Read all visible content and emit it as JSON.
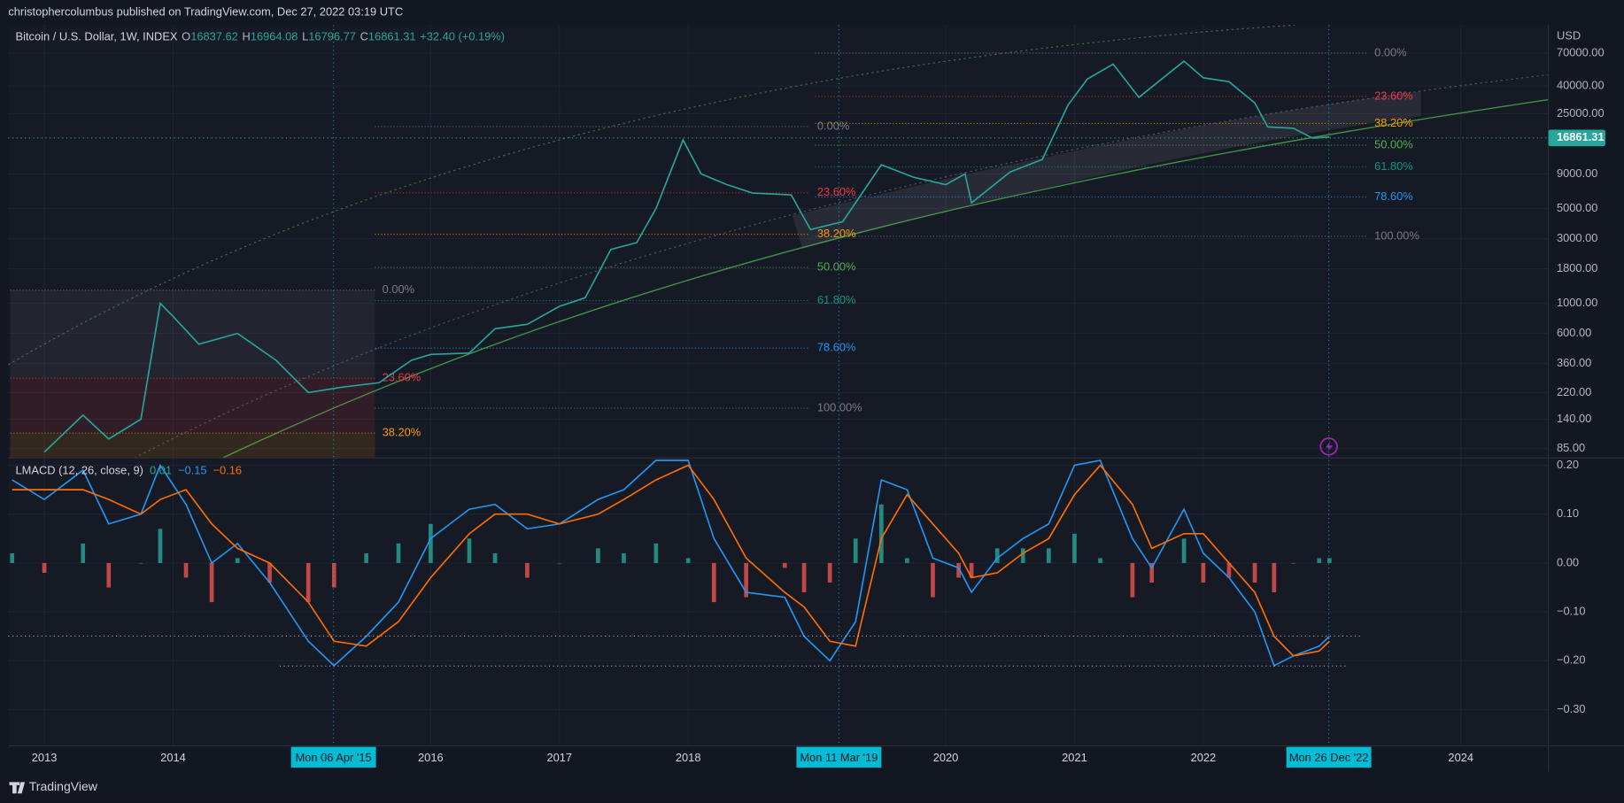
{
  "header": {
    "publisher": "christophercolumbus published on TradingView.com, Dec 27, 2022 03:19 UTC",
    "currency": "USD",
    "last_price": "16861.31",
    "brand": "TradingView"
  },
  "legend": {
    "symbol": "Bitcoin / U.S. Dollar, 1W, INDEX",
    "o": "O",
    "open": "16837.62",
    "h": "H",
    "high": "16964.08",
    "l": "L",
    "low": "16796.77",
    "c": "C",
    "close": "16861.31",
    "change": "+32.40 (+0.19%)"
  },
  "crosshair_dates": [
    "Mon 06 Apr '15",
    "Mon 11 Mar '19",
    "Mon 26 Dec '22"
  ],
  "fibonacci": [
    {
      "levels": [
        "0.00%",
        "23.60%",
        "38.20%"
      ]
    },
    {
      "levels": [
        "0.00%",
        "23.60%",
        "38.20%",
        "50.00%",
        "61.80%",
        "78.60%",
        "100.00%"
      ]
    },
    {
      "levels": [
        "0.00%",
        "23.60%",
        "38.20%",
        "50.00%",
        "61.80%",
        "78.60%",
        "100.00%"
      ]
    }
  ],
  "chart_data": [
    {
      "type": "line",
      "log_scale": true,
      "grid": true,
      "x": [
        2013.0,
        2013.3,
        2013.5,
        2013.75,
        2013.9,
        2014.0,
        2014.2,
        2014.5,
        2014.8,
        2015.05,
        2015.3,
        2015.6,
        2015.85,
        2016.0,
        2016.3,
        2016.5,
        2016.75,
        2017.0,
        2017.2,
        2017.4,
        2017.6,
        2017.75,
        2017.96,
        2018.1,
        2018.3,
        2018.5,
        2018.8,
        2018.95,
        2019.2,
        2019.5,
        2019.75,
        2020.0,
        2020.15,
        2020.2,
        2020.5,
        2020.75,
        2020.95,
        2021.1,
        2021.3,
        2021.5,
        2021.85,
        2022.0,
        2022.2,
        2022.4,
        2022.5,
        2022.7,
        2022.85,
        2022.98
      ],
      "series": [
        {
          "name": "Bitcoin / U.S. Dollar, 1W, INDEX",
          "color": "#26a69a",
          "values": [
            80,
            150,
            100,
            140,
            1000,
            800,
            500,
            600,
            380,
            220,
            240,
            260,
            380,
            420,
            430,
            650,
            700,
            950,
            1100,
            2500,
            2800,
            5000,
            16000,
            9000,
            7500,
            6500,
            6300,
            3500,
            4000,
            10500,
            8500,
            7500,
            9000,
            5500,
            9300,
            11500,
            29000,
            45000,
            58000,
            33000,
            61000,
            46000,
            43000,
            30000,
            20000,
            19500,
            16500,
            16861.31
          ]
        }
      ],
      "xlim": [
        2012.72,
        2024.68
      ],
      "ylim": [
        72.5,
        112500
      ],
      "yticks": [
        {
          "value": 70000,
          "label": "70000.00"
        },
        {
          "value": 40000,
          "label": "40000.00"
        },
        {
          "value": 25000,
          "label": "25000.00"
        },
        {
          "value": 9000,
          "label": "9000.00"
        },
        {
          "value": 5000,
          "label": "5000.00"
        },
        {
          "value": 3000,
          "label": "3000.00"
        },
        {
          "value": 1800,
          "label": "1800.00"
        },
        {
          "value": 1000,
          "label": "1000.00"
        },
        {
          "value": 600,
          "label": "600.00"
        },
        {
          "value": 360,
          "label": "360.00"
        },
        {
          "value": 220,
          "label": "220.00"
        },
        {
          "value": 140,
          "label": "140.00"
        },
        {
          "value": 85,
          "label": "85.00"
        }
      ]
    },
    {
      "type": "line",
      "grid": true,
      "title": "LMACD (12, 26, close, 9)",
      "legend_values": [
        {
          "value": 0.01,
          "label": "0.01"
        },
        {
          "value": -0.15,
          "label": "−0.15"
        },
        {
          "value": -0.16,
          "label": "−0.16"
        }
      ],
      "x": [
        2012.75,
        2013.0,
        2013.3,
        2013.5,
        2013.75,
        2013.9,
        2014.1,
        2014.3,
        2014.5,
        2014.75,
        2015.05,
        2015.25,
        2015.5,
        2015.75,
        2016.0,
        2016.3,
        2016.5,
        2016.75,
        2017.0,
        2017.3,
        2017.5,
        2017.75,
        2018.0,
        2018.2,
        2018.45,
        2018.75,
        2018.9,
        2019.1,
        2019.3,
        2019.5,
        2019.7,
        2019.9,
        2020.1,
        2020.2,
        2020.4,
        2020.6,
        2020.8,
        2021.0,
        2021.2,
        2021.45,
        2021.6,
        2021.85,
        2022.0,
        2022.2,
        2022.4,
        2022.55,
        2022.7,
        2022.9,
        2022.98
      ],
      "histogram": {
        "color": "#26a69a",
        "negative_color": "#ef5350",
        "values": [
          0.02,
          -0.02,
          0.04,
          -0.05,
          0,
          0.07,
          -0.03,
          -0.08,
          0.01,
          -0.04,
          -0.08,
          -0.05,
          0.02,
          0.04,
          0.08,
          0.05,
          0.02,
          -0.03,
          0,
          0.03,
          0.02,
          0.04,
          0.01,
          -0.08,
          -0.07,
          -0.01,
          -0.06,
          -0.04,
          0.05,
          0.12,
          0.01,
          -0.07,
          -0.03,
          -0.03,
          0.03,
          0.03,
          0.03,
          0.06,
          0.01,
          -0.07,
          -0.04,
          0.05,
          -0.04,
          -0.03,
          -0.04,
          -0.06,
          0,
          0.01,
          0.01
        ]
      },
      "series": [
        {
          "color": "#2196f3",
          "values": [
            0.17,
            0.13,
            0.19,
            0.08,
            0.1,
            0.2,
            0.12,
            0,
            0.04,
            -0.04,
            -0.16,
            -0.21,
            -0.15,
            -0.08,
            0.05,
            0.11,
            0.12,
            0.07,
            0.08,
            0.13,
            0.15,
            0.21,
            0.21,
            0.05,
            -0.06,
            -0.07,
            -0.15,
            -0.2,
            -0.12,
            0.17,
            0.15,
            0.01,
            -0.01,
            -0.06,
            0.01,
            0.05,
            0.08,
            0.2,
            0.21,
            0.05,
            -0.01,
            0.11,
            0.02,
            -0.03,
            -0.1,
            -0.21,
            -0.19,
            -0.17,
            -0.15
          ]
        },
        {
          "color": "#ff6d00",
          "values": [
            0.15,
            0.15,
            0.15,
            0.13,
            0.1,
            0.13,
            0.15,
            0.08,
            0.03,
            0,
            -0.08,
            -0.16,
            -0.17,
            -0.12,
            -0.03,
            0.06,
            0.1,
            0.1,
            0.08,
            0.1,
            0.13,
            0.17,
            0.2,
            0.13,
            0.01,
            -0.06,
            -0.09,
            -0.16,
            -0.17,
            0.05,
            0.14,
            0.08,
            0.02,
            -0.03,
            -0.02,
            0.02,
            0.05,
            0.14,
            0.2,
            0.12,
            0.03,
            0.06,
            0.06,
            0,
            -0.06,
            -0.15,
            -0.19,
            -0.18,
            -0.16
          ]
        }
      ],
      "xlim": [
        2012.72,
        2024.68
      ],
      "xticks": [
        2013,
        2014,
        2016,
        2017,
        2018,
        2020,
        2021,
        2022,
        2024
      ],
      "ylim": [
        -0.374,
        0.215
      ],
      "yticks": [
        {
          "value": 0.2,
          "label": "0.20"
        },
        {
          "value": 0.1,
          "label": "0.10"
        },
        {
          "value": 0,
          "label": "0.00"
        },
        {
          "value": -0.1,
          "label": "−0.10"
        },
        {
          "value": -0.2,
          "label": "−0.20"
        },
        {
          "value": -0.3,
          "label": "−0.30"
        }
      ]
    }
  ]
}
